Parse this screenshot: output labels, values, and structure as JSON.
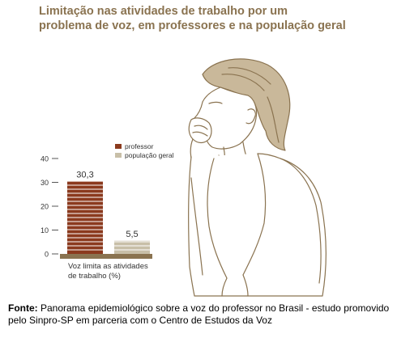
{
  "title_lines": [
    "Limitação nas atividades de trabalho por um",
    "problema de voz, em professores e na população geral"
  ],
  "source": {
    "label": "Fonte:",
    "text": " Panorama epidemiológico sobre a voz do professor no Brasil - estudo promovido pelo Sinpro-SP em parceria com o Centro de Estudos da Voz"
  },
  "colors": {
    "title": "#8a7350",
    "professor": "#8b3a1e",
    "populacao_geral": "#c8bfa8",
    "baseline": "#8a7350",
    "axis_text": "#333333"
  },
  "chart_data": {
    "type": "bar",
    "categories": [
      "Voz limita as atividades de trabalho (%)"
    ],
    "category_lines": [
      "Voz limita as atividades",
      "de trabalho (%)"
    ],
    "series": [
      {
        "name": "professor",
        "values": [
          30.3
        ]
      },
      {
        "name": "população geral",
        "values": [
          5.5
        ]
      }
    ],
    "value_labels": [
      "30,3",
      "5,5"
    ],
    "y_ticks": [
      0,
      10,
      20,
      30,
      40
    ],
    "y_tick_labels": [
      "0",
      "10",
      "20",
      "30",
      "40"
    ],
    "ylim": [
      0,
      40
    ],
    "legend_position": "top-right"
  }
}
